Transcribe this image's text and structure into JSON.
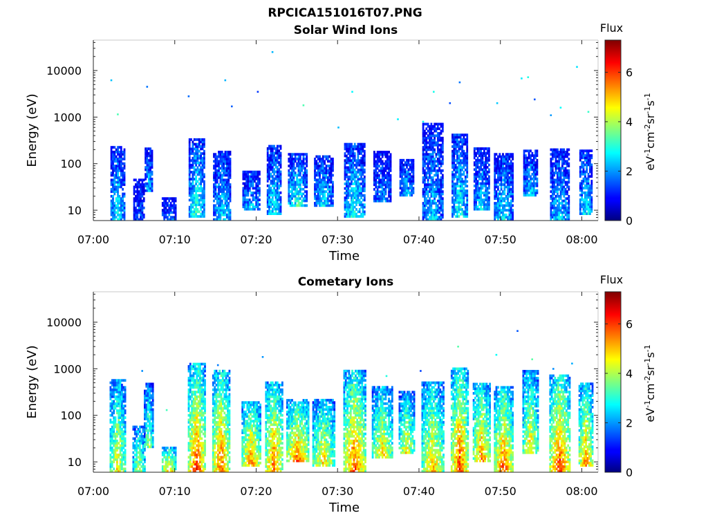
{
  "figure_title": "RPCICA151016T07.PNG",
  "chart_data": [
    {
      "type": "heatmap",
      "title": "Solar Wind Ions",
      "xlabel": "Time",
      "ylabel": "Energy (eV)",
      "yscale": "log",
      "ylim": [
        6,
        45000
      ],
      "xlim_minutes": [
        0,
        62
      ],
      "x_ticks": [
        "07:00",
        "07:10",
        "07:20",
        "07:30",
        "07:40",
        "07:50",
        "08:00"
      ],
      "y_ticks": [
        "10",
        "100",
        "1000",
        "10000"
      ],
      "colorbar": {
        "title": "Flux",
        "label_base": "eV",
        "label_parts": [
          "-1",
          "cm",
          "-2",
          "sr",
          "-1",
          "s",
          "-1"
        ],
        "range": [
          0,
          7.3
        ],
        "ticks": [
          "0",
          "2",
          "4",
          "6"
        ],
        "colormap": "jet"
      },
      "bursts": [
        {
          "t": 2.9,
          "w": 0.8,
          "emin": 6,
          "emax": 220,
          "peak": 2.8
        },
        {
          "t": 5.5,
          "w": 0.6,
          "emin": 6,
          "emax": 45,
          "peak": 1.6
        },
        {
          "t": 6.7,
          "w": 0.4,
          "emin": 25,
          "emax": 220,
          "peak": 2.4
        },
        {
          "t": 9.2,
          "w": 0.8,
          "emin": 6,
          "emax": 18,
          "peak": 1.8
        },
        {
          "t": 12.6,
          "w": 0.9,
          "emin": 7,
          "emax": 350,
          "peak": 3.2
        },
        {
          "t": 15.7,
          "w": 1.0,
          "emin": 6,
          "emax": 180,
          "peak": 2.6
        },
        {
          "t": 19.3,
          "w": 1.0,
          "emin": 10,
          "emax": 70,
          "peak": 2.4
        },
        {
          "t": 22.1,
          "w": 0.8,
          "emin": 8,
          "emax": 250,
          "peak": 2.8
        },
        {
          "t": 25.0,
          "w": 1.1,
          "emin": 12,
          "emax": 160,
          "peak": 3.1
        },
        {
          "t": 28.2,
          "w": 1.1,
          "emin": 12,
          "emax": 150,
          "peak": 2.6
        },
        {
          "t": 32.0,
          "w": 1.2,
          "emin": 7,
          "emax": 260,
          "peak": 3.0
        },
        {
          "t": 35.4,
          "w": 1.0,
          "emin": 15,
          "emax": 180,
          "peak": 2.0
        },
        {
          "t": 38.4,
          "w": 0.8,
          "emin": 20,
          "emax": 120,
          "peak": 2.3
        },
        {
          "t": 41.6,
          "w": 1.2,
          "emin": 6,
          "emax": 700,
          "peak": 2.4
        },
        {
          "t": 44.9,
          "w": 0.9,
          "emin": 7,
          "emax": 400,
          "peak": 3.0
        },
        {
          "t": 47.6,
          "w": 0.9,
          "emin": 10,
          "emax": 200,
          "peak": 2.6
        },
        {
          "t": 50.3,
          "w": 1.1,
          "emin": 6,
          "emax": 160,
          "peak": 2.7
        },
        {
          "t": 53.6,
          "w": 0.8,
          "emin": 20,
          "emax": 180,
          "peak": 2.6
        },
        {
          "t": 57.2,
          "w": 1.1,
          "emin": 6,
          "emax": 200,
          "peak": 2.6
        },
        {
          "t": 60.4,
          "w": 0.7,
          "emin": 8,
          "emax": 180,
          "peak": 2.8
        }
      ],
      "scatter": [
        [
          2.2,
          6200
        ],
        [
          3.0,
          1150
        ],
        [
          6.6,
          4500
        ],
        [
          11.7,
          2800
        ],
        [
          16.2,
          6200
        ],
        [
          17.0,
          1700
        ],
        [
          20.2,
          3500
        ],
        [
          22.0,
          25000
        ],
        [
          25.8,
          1800
        ],
        [
          30.1,
          600
        ],
        [
          31.8,
          3500
        ],
        [
          37.4,
          900
        ],
        [
          40.5,
          800
        ],
        [
          41.8,
          3500
        ],
        [
          43.8,
          2000
        ],
        [
          45.0,
          5600
        ],
        [
          49.6,
          2000
        ],
        [
          52.6,
          6800
        ],
        [
          53.4,
          7200
        ],
        [
          54.2,
          2400
        ],
        [
          56.2,
          1100
        ],
        [
          57.4,
          1600
        ],
        [
          59.4,
          12000
        ],
        [
          60.8,
          1300
        ]
      ]
    },
    {
      "type": "heatmap",
      "title": "Cometary Ions",
      "xlabel": "Time",
      "ylabel": "Energy (eV)",
      "yscale": "log",
      "ylim": [
        6,
        45000
      ],
      "xlim_minutes": [
        0,
        62
      ],
      "x_ticks": [
        "07:00",
        "07:10",
        "07:20",
        "07:30",
        "07:40",
        "07:50",
        "08:00"
      ],
      "y_ticks": [
        "10",
        "100",
        "1000",
        "10000"
      ],
      "colorbar": {
        "title": "Flux",
        "label_base": "eV",
        "label_parts": [
          "-1",
          "cm",
          "-2",
          "sr",
          "-1",
          "s",
          "-1"
        ],
        "range": [
          0,
          7.3
        ],
        "ticks": [
          "0",
          "2",
          "4",
          "6"
        ],
        "colormap": "jet"
      },
      "bursts": [
        {
          "t": 2.9,
          "w": 0.9,
          "emin": 6,
          "emax": 550,
          "peak": 4.8
        },
        {
          "t": 5.5,
          "w": 0.7,
          "emin": 6,
          "emax": 60,
          "peak": 4.2
        },
        {
          "t": 6.7,
          "w": 0.5,
          "emin": 20,
          "emax": 500,
          "peak": 4.0
        },
        {
          "t": 9.2,
          "w": 0.8,
          "emin": 6,
          "emax": 20,
          "peak": 5.6
        },
        {
          "t": 12.6,
          "w": 1.0,
          "emin": 6,
          "emax": 1200,
          "peak": 6.2
        },
        {
          "t": 15.6,
          "w": 1.0,
          "emin": 6,
          "emax": 900,
          "peak": 6.0
        },
        {
          "t": 19.3,
          "w": 1.1,
          "emin": 8,
          "emax": 200,
          "peak": 5.6
        },
        {
          "t": 22.1,
          "w": 1.0,
          "emin": 6,
          "emax": 500,
          "peak": 5.9
        },
        {
          "t": 25.0,
          "w": 1.3,
          "emin": 10,
          "emax": 200,
          "peak": 5.8
        },
        {
          "t": 28.2,
          "w": 1.3,
          "emin": 8,
          "emax": 220,
          "peak": 5.0
        },
        {
          "t": 32.0,
          "w": 1.3,
          "emin": 6,
          "emax": 900,
          "peak": 6.0
        },
        {
          "t": 35.4,
          "w": 1.2,
          "emin": 12,
          "emax": 400,
          "peak": 5.0
        },
        {
          "t": 38.4,
          "w": 0.9,
          "emin": 15,
          "emax": 300,
          "peak": 4.8
        },
        {
          "t": 41.6,
          "w": 1.3,
          "emin": 6,
          "emax": 500,
          "peak": 5.2
        },
        {
          "t": 44.9,
          "w": 1.0,
          "emin": 6,
          "emax": 1000,
          "peak": 6.2
        },
        {
          "t": 47.6,
          "w": 1.0,
          "emin": 10,
          "emax": 500,
          "peak": 5.6
        },
        {
          "t": 50.3,
          "w": 1.1,
          "emin": 6,
          "emax": 400,
          "peak": 6.0
        },
        {
          "t": 53.6,
          "w": 0.9,
          "emin": 15,
          "emax": 900,
          "peak": 5.0
        },
        {
          "t": 57.2,
          "w": 1.2,
          "emin": 6,
          "emax": 700,
          "peak": 6.2
        },
        {
          "t": 60.4,
          "w": 0.8,
          "emin": 8,
          "emax": 500,
          "peak": 5.6
        }
      ],
      "scatter": [
        [
          6.0,
          900
        ],
        [
          9.0,
          130
        ],
        [
          15.3,
          1200
        ],
        [
          20.8,
          1800
        ],
        [
          31.0,
          900
        ],
        [
          36.0,
          700
        ],
        [
          40.2,
          900
        ],
        [
          44.8,
          3000
        ],
        [
          49.5,
          2000
        ],
        [
          52.1,
          6500
        ],
        [
          53.9,
          1600
        ],
        [
          56.5,
          1000
        ],
        [
          58.8,
          1300
        ]
      ]
    }
  ]
}
